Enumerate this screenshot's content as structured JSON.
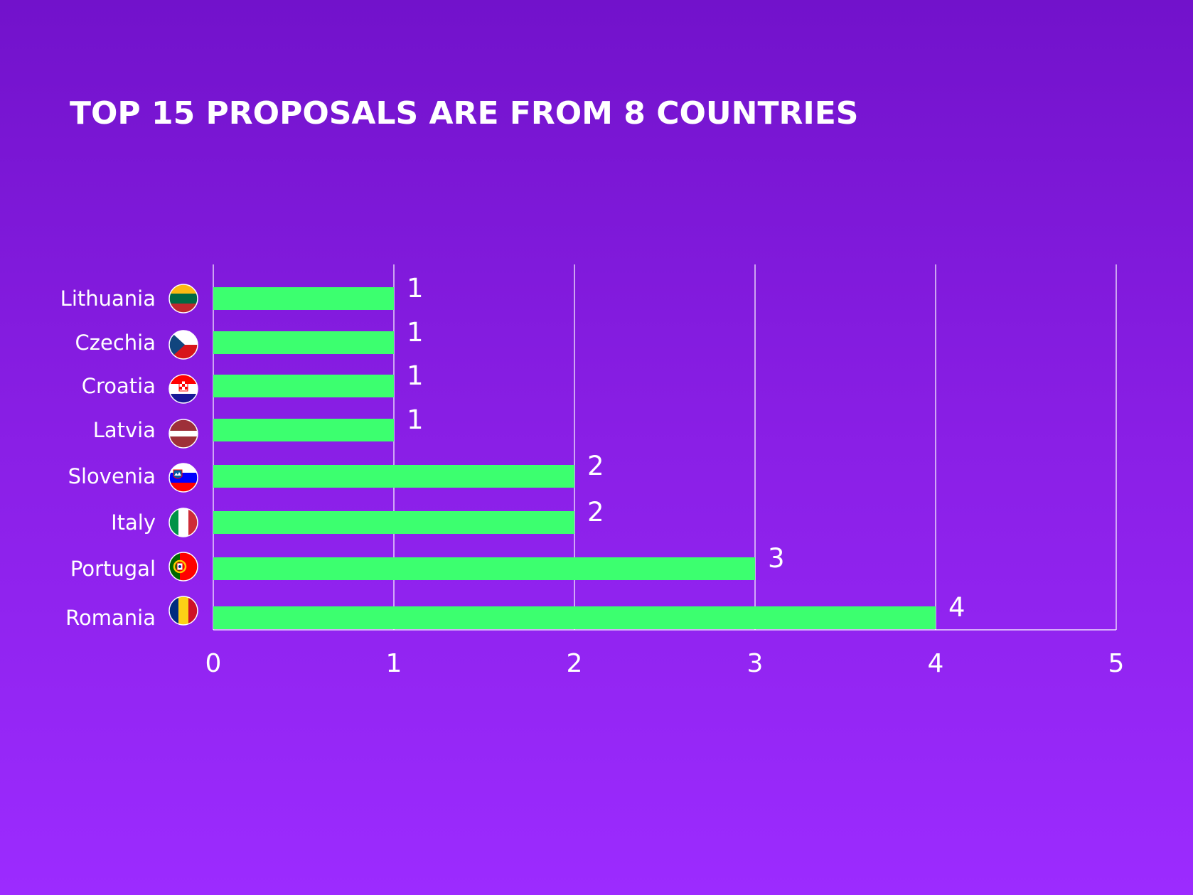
{
  "chart_data": {
    "type": "bar",
    "orientation": "horizontal",
    "title": "TOP 15 PROPOSALS ARE FROM 8 COUNTRIES",
    "categories": [
      "Lithuania",
      "Czechia",
      "Croatia",
      "Latvia",
      "Slovenia",
      "Italy",
      "Portugal",
      "Romania"
    ],
    "values": [
      1,
      1,
      1,
      1,
      2,
      2,
      3,
      4
    ],
    "data_labels": [
      "1",
      "1",
      "1",
      "1",
      "2",
      "2",
      "3",
      "4"
    ],
    "xlim": [
      0,
      5
    ],
    "x_ticks": [
      "0",
      "1",
      "2",
      "3",
      "4",
      "5"
    ],
    "grid": "vertical",
    "legend": "none",
    "flag_icons": [
      "lithuania-flag-icon",
      "czechia-flag-icon",
      "croatia-flag-icon",
      "latvia-flag-icon",
      "slovenia-flag-icon",
      "italy-flag-icon",
      "portugal-flag-icon",
      "romania-flag-icon"
    ]
  },
  "colors": {
    "background_top": "#7212cb",
    "background_bottom": "#9c2bff",
    "bar": "#3cff6f",
    "text": "#ffffff",
    "grid": "#ffffff"
  }
}
